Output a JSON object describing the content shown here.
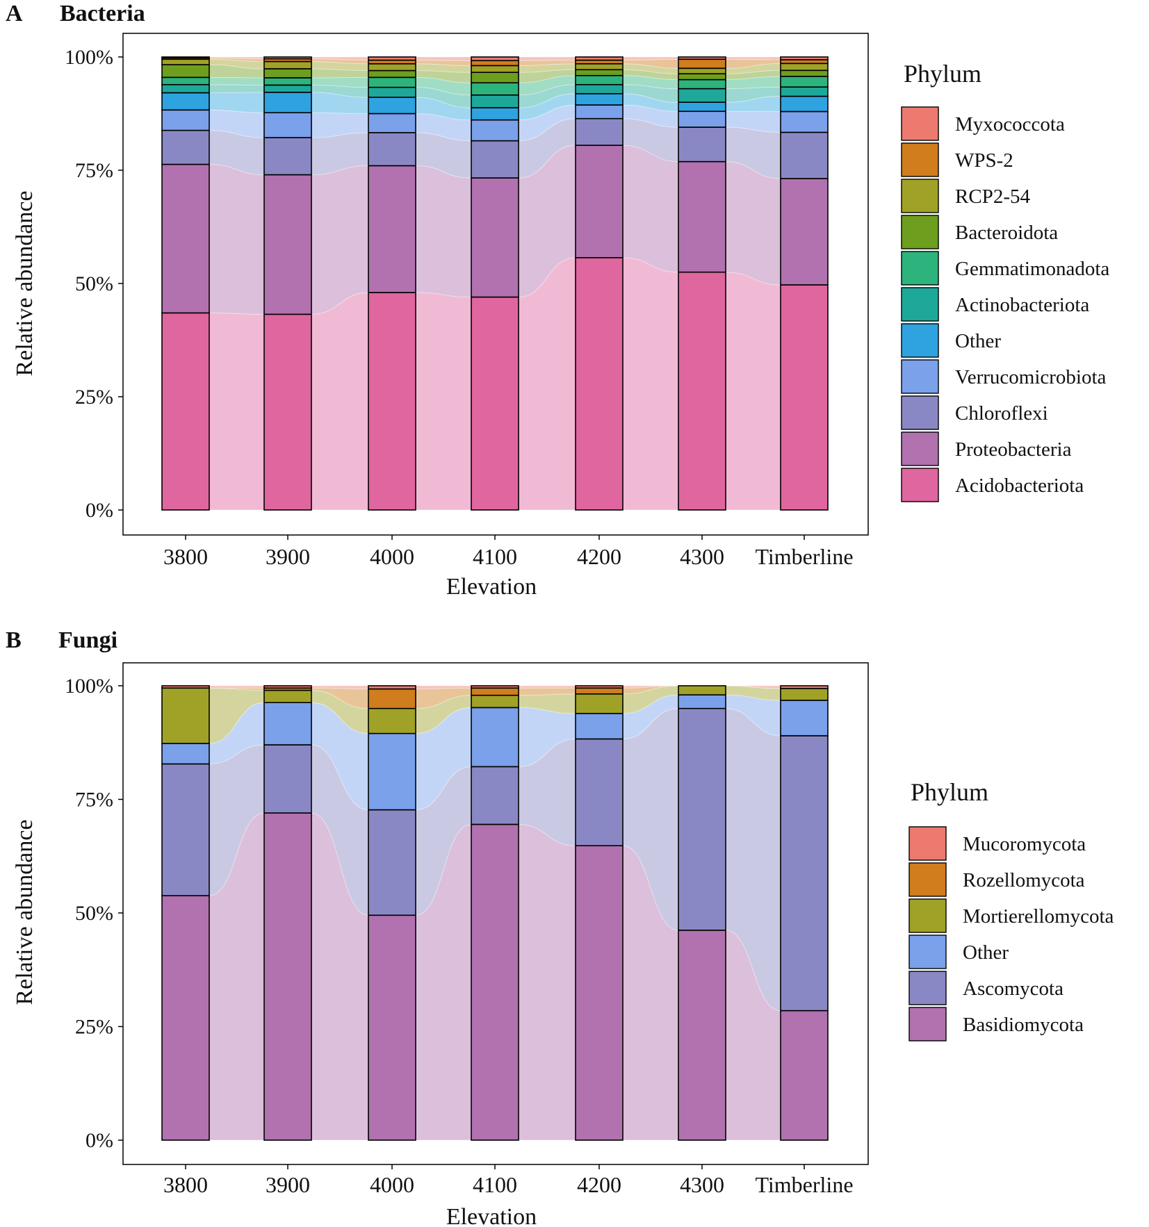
{
  "chart_data": [
    {
      "type": "bar",
      "stacked": true,
      "alluvial_flow": true,
      "panel_letter": "A",
      "title": "Bacteria",
      "xlabel": "Elevation",
      "ylabel": "Relative abundance",
      "ylim": [
        0,
        100
      ],
      "yticks": [
        "0%",
        "25%",
        "50%",
        "75%",
        "100%"
      ],
      "categories": [
        "3800",
        "3900",
        "4000",
        "4100",
        "4200",
        "4300",
        "Timberline"
      ],
      "legend_title": "Phylum",
      "series": [
        {
          "name": "Acidobacteriota",
          "color": "#e0669f",
          "values": [
            43.5,
            43.2,
            48.0,
            47.0,
            55.7,
            52.5,
            48.7
          ]
        },
        {
          "name": "Proteobacteria",
          "color": "#b172af",
          "values": [
            32.8,
            30.8,
            28.0,
            26.3,
            24.8,
            24.4,
            23.0
          ]
        },
        {
          "name": "Chloroflexi",
          "color": "#8a88c4",
          "values": [
            7.5,
            8.2,
            7.3,
            8.2,
            5.9,
            7.6,
            10.0
          ]
        },
        {
          "name": "Verrucomicrobiota",
          "color": "#7aa1ea",
          "values": [
            4.5,
            5.5,
            4.2,
            4.6,
            3.0,
            3.5,
            4.5
          ]
        },
        {
          "name": "Other",
          "color": "#2ea3e0",
          "values": [
            3.8,
            4.5,
            3.6,
            2.7,
            2.5,
            2.0,
            3.3
          ]
        },
        {
          "name": "Actinobacteriota",
          "color": "#1ea89a",
          "values": [
            1.8,
            1.6,
            2.2,
            2.8,
            2.0,
            3.0,
            2.0
          ]
        },
        {
          "name": "Gemmatimonadota",
          "color": "#2db37c",
          "values": [
            1.6,
            1.6,
            2.2,
            2.7,
            2.0,
            2.0,
            2.3
          ]
        },
        {
          "name": "Bacteroidota",
          "color": "#6e9e1d",
          "values": [
            2.8,
            2.0,
            1.5,
            2.3,
            1.3,
            1.3,
            1.3
          ]
        },
        {
          "name": "RCP2-54",
          "color": "#a0a227",
          "values": [
            1.2,
            1.6,
            1.5,
            1.5,
            1.3,
            1.2,
            1.5
          ]
        },
        {
          "name": "WPS-2",
          "color": "#cf7d1d",
          "values": [
            0.3,
            0.6,
            0.8,
            1.1,
            0.8,
            2.0,
            0.8
          ]
        },
        {
          "name": "Myxococcota",
          "color": "#ec7a6f",
          "values": [
            0.2,
            0.4,
            0.7,
            0.8,
            0.7,
            0.5,
            0.6
          ]
        }
      ]
    },
    {
      "type": "bar",
      "stacked": true,
      "alluvial_flow": true,
      "panel_letter": "B",
      "title": "Fungi",
      "xlabel": "Elevation",
      "ylabel": "Relative abundance",
      "ylim": [
        0,
        100
      ],
      "yticks": [
        "0%",
        "25%",
        "50%",
        "75%",
        "100%"
      ],
      "categories": [
        "3800",
        "3900",
        "4000",
        "4100",
        "4200",
        "4300",
        "Timberline"
      ],
      "legend_title": "Phylum",
      "series": [
        {
          "name": "Basidiomycota",
          "color": "#b172af",
          "values": [
            53.8,
            72.0,
            49.5,
            69.5,
            64.8,
            46.2,
            28.5
          ]
        },
        {
          "name": "Ascomycota",
          "color": "#8a88c4",
          "values": [
            29.0,
            15.0,
            23.2,
            12.7,
            23.5,
            48.8,
            60.5
          ]
        },
        {
          "name": "Other",
          "color": "#7aa1ea",
          "values": [
            4.5,
            9.3,
            16.8,
            13.0,
            5.6,
            3.0,
            7.8
          ]
        },
        {
          "name": "Mortierellomycota",
          "color": "#a0a227",
          "values": [
            12.2,
            2.7,
            5.5,
            2.7,
            4.3,
            2.0,
            2.6
          ]
        },
        {
          "name": "Rozellomycota",
          "color": "#cf7d1d",
          "values": [
            0.0,
            0.5,
            4.3,
            1.6,
            1.3,
            0.0,
            0.0
          ]
        },
        {
          "name": "Mucoromycota",
          "color": "#ec7a6f",
          "values": [
            0.5,
            0.5,
            0.7,
            0.5,
            0.5,
            0.0,
            0.6
          ]
        }
      ]
    }
  ]
}
